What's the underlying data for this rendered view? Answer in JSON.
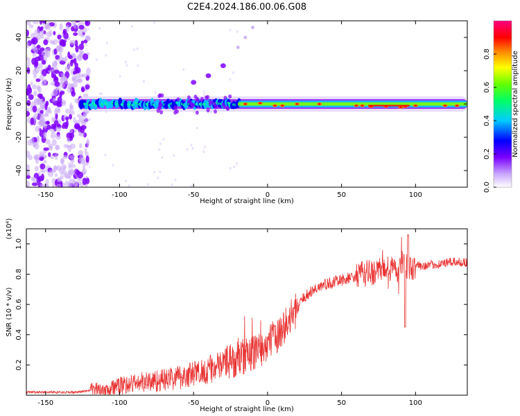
{
  "figure": {
    "title": "C2E4.2024.186.00.06.G08"
  },
  "chart_data": [
    {
      "type": "heatmap",
      "xlabel": "Height of straight line (km)",
      "ylabel": "Frequency (Hz)",
      "xlim": [
        -163,
        135
      ],
      "ylim": [
        -50,
        50
      ],
      "xticks": [
        -150,
        -100,
        -50,
        0,
        50,
        100
      ],
      "yticks": [
        -40,
        -20,
        0,
        20,
        40
      ],
      "colorbar": {
        "label": "Normalized spectral amplitude",
        "range": [
          0,
          1
        ],
        "ticks": [
          0.0,
          0.2,
          0.4,
          0.6,
          0.8
        ],
        "tick_labels": [
          "0.0",
          "0.2",
          "0.4",
          "0.6",
          "0.8"
        ],
        "colormap": [
          "#ffffff",
          "#8000ff",
          "#0000ff",
          "#00c8ff",
          "#00ff80",
          "#80ff00",
          "#ffff00",
          "#ff8000",
          "#ff0000",
          "#ff0080"
        ]
      },
      "features": {
        "noise_region_x": [
          -163,
          -125
        ],
        "main_band_center_hz": 0,
        "main_band_x": [
          -128,
          135
        ],
        "harmonic_track": [
          [
            -50,
            13
          ],
          [
            -40,
            17
          ],
          [
            -30,
            23
          ],
          [
            -20,
            34
          ],
          [
            -15,
            40
          ],
          [
            -10,
            46
          ]
        ]
      }
    },
    {
      "type": "line",
      "xlabel": "Height of straight line (km)",
      "ylabel": "SNR (10 * v/v)",
      "scale_label": "(x10⁴)",
      "xlim": [
        -163,
        135
      ],
      "ylim": [
        0,
        1.1
      ],
      "xticks": [
        -150,
        -100,
        -50,
        0,
        50,
        100
      ],
      "yticks": [
        0.2,
        0.4,
        0.6,
        0.8,
        1.0
      ],
      "ytick_labels": [
        "0.2",
        "0.4",
        "0.6",
        "0.8",
        "1.0"
      ],
      "series": [
        {
          "color": "#e83232",
          "trend": [
            [
              -163,
              0.02
            ],
            [
              -130,
              0.02
            ],
            [
              -110,
              0.04
            ],
            [
              -90,
              0.08
            ],
            [
              -70,
              0.1
            ],
            [
              -50,
              0.14
            ],
            [
              -30,
              0.2
            ],
            [
              -15,
              0.26
            ],
            [
              -5,
              0.3
            ],
            [
              5,
              0.38
            ],
            [
              15,
              0.5
            ],
            [
              25,
              0.65
            ],
            [
              35,
              0.72
            ],
            [
              50,
              0.76
            ],
            [
              65,
              0.8
            ],
            [
              80,
              0.83
            ],
            [
              95,
              0.85
            ],
            [
              110,
              0.86
            ],
            [
              125,
              0.88
            ],
            [
              135,
              0.88
            ]
          ]
        }
      ]
    }
  ]
}
